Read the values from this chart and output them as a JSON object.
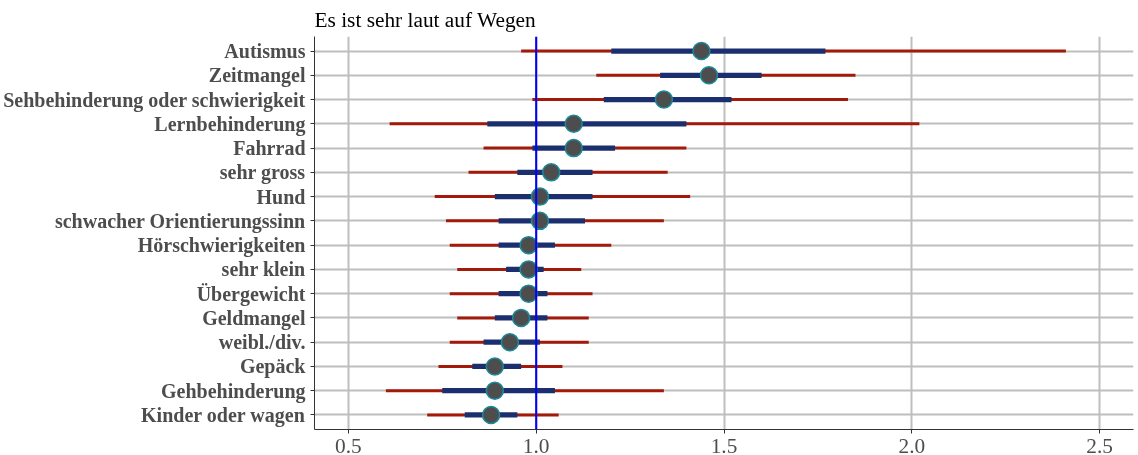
{
  "chart_data": {
    "type": "box",
    "orientation": "horizontal",
    "title": "Es ist sehr laut auf Wegen",
    "categories": [
      "Autismus",
      "Zeitmangel",
      "Sehbehinderung oder schwierigkeit",
      "Lernbehinderung",
      "Fahrrad",
      "sehr gross",
      "Hund",
      "schwacher Orientierungssinn",
      "Hörschwierigkeiten",
      "sehr klein",
      "Übergewicht",
      "Geldmangel",
      "weibl./div.",
      "Gepäck",
      "Gehbehinderung",
      "Kinder oder wagen"
    ],
    "series": [
      {
        "color": "#1b2f6e",
        "boxes": [
          {
            "low": 0.96,
            "q1": 1.2,
            "median": 1.44,
            "q3": 1.77,
            "high": 2.41
          },
          {
            "low": 1.16,
            "q1": 1.33,
            "median": 1.46,
            "q3": 1.6,
            "high": 1.85
          },
          {
            "low": 0.99,
            "q1": 1.18,
            "median": 1.34,
            "q3": 1.52,
            "high": 1.83
          },
          {
            "low": 0.61,
            "q1": 0.87,
            "median": 1.1,
            "q3": 1.4,
            "high": 2.02
          },
          {
            "low": 0.86,
            "q1": 0.99,
            "median": 1.1,
            "q3": 1.21,
            "high": 1.4
          },
          {
            "low": 0.82,
            "q1": 0.95,
            "median": 1.04,
            "q3": 1.15,
            "high": 1.35
          },
          {
            "low": 0.73,
            "q1": 0.89,
            "median": 1.01,
            "q3": 1.15,
            "high": 1.41
          },
          {
            "low": 0.76,
            "q1": 0.9,
            "median": 1.01,
            "q3": 1.13,
            "high": 1.34
          },
          {
            "low": 0.77,
            "q1": 0.9,
            "median": 0.98,
            "q3": 1.05,
            "high": 1.2
          },
          {
            "low": 0.79,
            "q1": 0.92,
            "median": 0.98,
            "q3": 1.02,
            "high": 1.12
          },
          {
            "low": 0.77,
            "q1": 0.9,
            "median": 0.98,
            "q3": 1.03,
            "high": 1.15
          },
          {
            "low": 0.79,
            "q1": 0.89,
            "median": 0.96,
            "q3": 1.03,
            "high": 1.14
          },
          {
            "low": 0.77,
            "q1": 0.86,
            "median": 0.93,
            "q3": 1.01,
            "high": 1.14
          },
          {
            "low": 0.74,
            "q1": 0.83,
            "median": 0.89,
            "q3": 0.96,
            "high": 1.07
          },
          {
            "low": 0.6,
            "q1": 0.75,
            "median": 0.89,
            "q3": 1.05,
            "high": 1.34
          },
          {
            "low": 0.71,
            "q1": 0.81,
            "median": 0.88,
            "q3": 0.95,
            "high": 1.06
          }
        ]
      }
    ],
    "xlim": [
      0.41,
      2.59
    ],
    "xticks": [
      0.5,
      {
        "value": 1,
        "label": "1.0"
      },
      1.5,
      {
        "value": 2,
        "label": "2.0"
      },
      2.5
    ],
    "ref_lines": [
      {
        "axis": "x",
        "value": 1,
        "label": null,
        "color": "#0000ff"
      }
    ],
    "grid": true
  }
}
